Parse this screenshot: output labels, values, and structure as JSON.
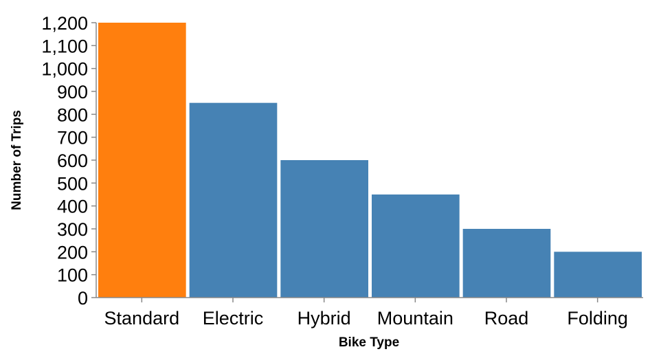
{
  "chart_data": {
    "type": "bar",
    "title": "",
    "xlabel": "Bike Type",
    "ylabel": "Number of Trips",
    "categories": [
      "Standard",
      "Electric",
      "Hybrid",
      "Mountain",
      "Road",
      "Folding"
    ],
    "values": [
      1200,
      850,
      600,
      450,
      300,
      200
    ],
    "ylim": [
      0,
      1200
    ],
    "yticks": [
      0,
      100,
      200,
      300,
      400,
      500,
      600,
      700,
      800,
      900,
      1000,
      1100,
      1200
    ],
    "ytick_labels": [
      "0",
      "100",
      "200",
      "300",
      "400",
      "500",
      "600",
      "700",
      "800",
      "900",
      "1,000",
      "1,100",
      "1,200"
    ],
    "grid": false,
    "colors": {
      "highlight": "#ff7f0e",
      "default": "#4682b4",
      "axis": "#888888"
    },
    "highlighted_category": "Standard"
  }
}
